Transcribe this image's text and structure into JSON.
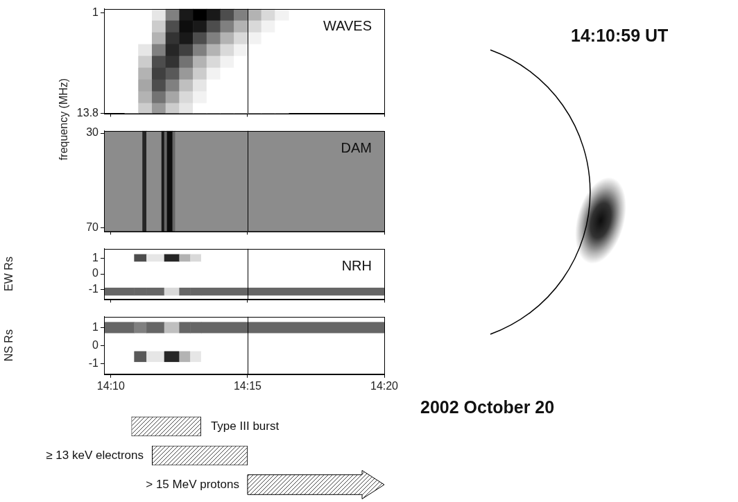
{
  "frequency_label": "frequency (MHz)",
  "image": {
    "time": "14:10:59 UT",
    "date": "2002 October 20"
  },
  "chart_data": [
    {
      "type": "heatmap",
      "title": "WAVES",
      "xlim": [
        9.75,
        20
      ],
      "xticks": [
        {
          "value": 10,
          "label": "14:10"
        },
        {
          "value": 15,
          "label": "14:15"
        },
        {
          "value": 20,
          "label": "14:20"
        }
      ],
      "ylim": [
        13.8,
        0.5
      ],
      "yticks": [
        1,
        13.8
      ],
      "tick_labels": "y",
      "vline": 15,
      "cells": {
        "x": [
          10.5,
          11,
          11.5,
          12,
          12.5,
          13,
          13.5,
          14,
          14.5,
          15,
          15.5,
          16,
          16.5
        ],
        "y": [
          0.5,
          2,
          3.5,
          5,
          6.5,
          8,
          9.5,
          11,
          12.5,
          13.8
        ],
        "z": [
          [
            0,
            0,
            0.1,
            0.5,
            0.9,
            1,
            0.9,
            0.7,
            0.5,
            0.3,
            0.15,
            0.05
          ],
          [
            0,
            0,
            0.2,
            0.7,
            0.95,
            0.9,
            0.7,
            0.5,
            0.3,
            0.15,
            0.05,
            0
          ],
          [
            0,
            0,
            0.3,
            0.8,
            0.9,
            0.7,
            0.5,
            0.3,
            0.15,
            0.05,
            0,
            0
          ],
          [
            0,
            0.1,
            0.5,
            0.85,
            0.75,
            0.5,
            0.3,
            0.15,
            0.05,
            0,
            0,
            0
          ],
          [
            0,
            0.2,
            0.7,
            0.8,
            0.55,
            0.3,
            0.15,
            0.05,
            0,
            0,
            0,
            0
          ],
          [
            0,
            0.3,
            0.75,
            0.65,
            0.4,
            0.2,
            0.05,
            0,
            0,
            0,
            0,
            0
          ],
          [
            0,
            0.35,
            0.7,
            0.5,
            0.25,
            0.1,
            0,
            0,
            0,
            0,
            0,
            0
          ],
          [
            0,
            0.3,
            0.55,
            0.35,
            0.15,
            0.05,
            0,
            0,
            0,
            0,
            0,
            0
          ],
          [
            0,
            0.2,
            0.4,
            0.2,
            0.1,
            0,
            0,
            0,
            0,
            0,
            0,
            0
          ]
        ]
      }
    },
    {
      "type": "heatmap",
      "title": "DAM",
      "xlim": [
        9.75,
        20
      ],
      "xticks": [
        {
          "value": 10,
          "label": "14:10"
        },
        {
          "value": 15,
          "label": "14:15"
        },
        {
          "value": 20,
          "label": "14:20"
        }
      ],
      "ylim": [
        71.5,
        29
      ],
      "yticks": [
        30,
        70
      ],
      "tick_labels": "y",
      "vline": 15,
      "cells": {
        "x": [
          9.75,
          11.15,
          11.3,
          11.85,
          11.95,
          12.05,
          12.25,
          12.35,
          20
        ],
        "y": [
          29,
          71.5
        ],
        "z": [
          [
            0.45,
            0.85,
            0.45,
            0.9,
            0.6,
            0.95,
            0.6,
            0.45
          ]
        ]
      }
    },
    {
      "type": "heatmap",
      "title": "NRH",
      "ylabel": "EW Rs",
      "xlim": [
        9.75,
        20
      ],
      "xticks": [
        {
          "value": 10,
          "label": "14:10"
        },
        {
          "value": 15,
          "label": "14:15"
        },
        {
          "value": 20,
          "label": "14:20"
        }
      ],
      "ylim": [
        -1.6,
        1.6
      ],
      "yticks": [
        -1,
        0,
        1
      ],
      "tick_labels": "y",
      "vline": 15,
      "cells": {
        "x": [
          9.75,
          10.85,
          11.3,
          11.95,
          12.5,
          12.9,
          13.3,
          20
        ],
        "y": [
          -1.35,
          -0.85,
          0.8,
          1.25
        ],
        "z": [
          [
            0.6,
            0.6,
            0.6,
            0.15,
            0.6,
            0.6,
            0.6
          ],
          [
            0,
            0,
            0,
            0,
            0,
            0,
            0
          ],
          [
            0,
            0.7,
            0.1,
            0.85,
            0.3,
            0.15,
            0
          ]
        ]
      }
    },
    {
      "type": "heatmap",
      "ylabel": "NS Rs",
      "xlim": [
        9.75,
        20
      ],
      "xticks": [
        {
          "value": 10,
          "label": "14:10"
        },
        {
          "value": 15,
          "label": "14:15"
        },
        {
          "value": 20,
          "label": "14:20"
        }
      ],
      "ylim": [
        -1.6,
        1.6
      ],
      "yticks": [
        -1,
        0,
        1
      ],
      "vline": 15,
      "cells": {
        "x": [
          9.75,
          10.85,
          11.3,
          11.95,
          12.5,
          12.9,
          13.3,
          20
        ],
        "y": [
          -0.9,
          -0.3,
          0.7,
          1.3
        ],
        "z": [
          [
            0,
            0.65,
            0.1,
            0.85,
            0.3,
            0.1,
            0
          ],
          [
            0,
            0,
            0,
            0,
            0,
            0,
            0
          ],
          [
            0.6,
            0.5,
            0.6,
            0.25,
            0.6,
            0.6,
            0.6
          ]
        ]
      }
    },
    {
      "type": "bar",
      "orientation": "horizontal",
      "tick_labels": false,
      "xlim": [
        9.75,
        20
      ],
      "series": [
        {
          "name": "Type III burst",
          "values": [
            10.75,
            13.3
          ]
        },
        {
          "name": "≥ 13 keV electrons",
          "values": [
            11.5,
            15
          ]
        },
        {
          "name": "> 15 MeV protons",
          "values": [
            15,
            20
          ],
          "marker": "arrow"
        }
      ]
    }
  ]
}
